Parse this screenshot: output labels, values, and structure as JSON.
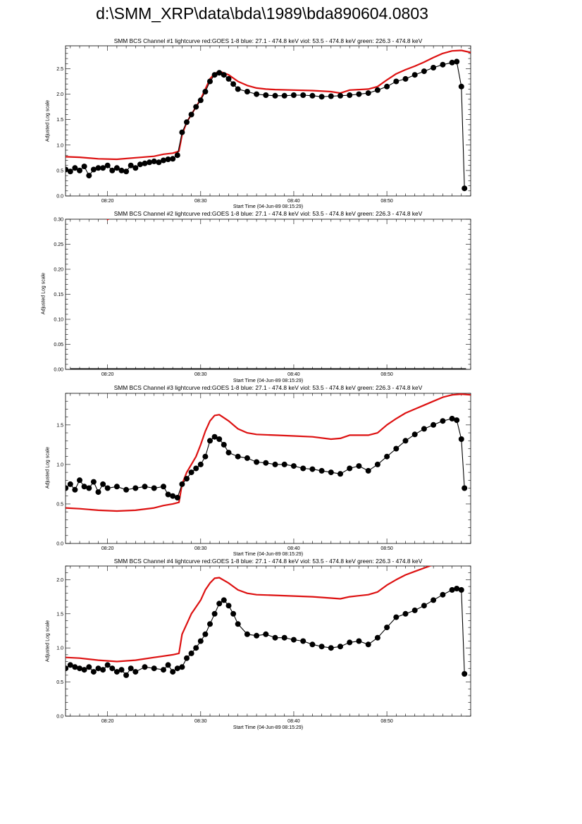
{
  "title": "d:\\SMM_XRP\\data\\bda\\1989\\bda890604.0803",
  "chart_data": [
    {
      "type": "line",
      "title": "SMM BCS Channel #1 lightcurve  red:GOES 1-8  blue: 27.1 - 474.8 keV  viol: 53.5 - 474.8 keV  green: 226.3 - 474.8 keV",
      "xlabel": "Start Time (04-Jun-89 08:15:29)",
      "ylabel": "Adjusted Log scale",
      "xlim": [
        "08:15:29",
        "08:59:00"
      ],
      "x_ticks": [
        "08:20",
        "08:30",
        "08:40",
        "08:50"
      ],
      "ylim": [
        0,
        2.95
      ],
      "y_ticks": [
        "0.0",
        "0.5",
        "1.0",
        "1.5",
        "2.0",
        "2.5"
      ],
      "y_tick_values": [
        0,
        0.5,
        1.0,
        1.5,
        2.0,
        2.5
      ],
      "series": [
        {
          "color": "#dd1111",
          "style": "line",
          "x": [
            "08:15:30",
            "08:17",
            "08:19",
            "08:21",
            "08:23",
            "08:25",
            "08:26",
            "08:27",
            "08:27:40",
            "08:28",
            "08:28:30",
            "08:29",
            "08:29:30",
            "08:30",
            "08:30:30",
            "08:31",
            "08:31:30",
            "08:32",
            "08:33",
            "08:34",
            "08:35",
            "08:36",
            "08:37",
            "08:38",
            "08:40",
            "08:42",
            "08:44",
            "08:45",
            "08:46",
            "08:48",
            "08:49",
            "08:50",
            "08:51",
            "08:52",
            "08:53",
            "08:54",
            "08:55",
            "08:56",
            "08:57",
            "08:58",
            "08:59"
          ],
          "y": [
            0.77,
            0.76,
            0.73,
            0.72,
            0.75,
            0.78,
            0.82,
            0.84,
            0.88,
            1.2,
            1.45,
            1.6,
            1.75,
            1.9,
            2.1,
            2.3,
            2.4,
            2.45,
            2.38,
            2.25,
            2.17,
            2.12,
            2.1,
            2.09,
            2.08,
            2.07,
            2.05,
            2.02,
            2.08,
            2.1,
            2.15,
            2.28,
            2.4,
            2.48,
            2.55,
            2.63,
            2.72,
            2.8,
            2.85,
            2.86,
            2.82
          ]
        },
        {
          "color": "#000000",
          "style": "dots",
          "x": [
            "08:15:30",
            "08:16",
            "08:16:30",
            "08:17",
            "08:17:30",
            "08:18",
            "08:18:30",
            "08:19",
            "08:19:30",
            "08:20",
            "08:20:30",
            "08:21",
            "08:21:30",
            "08:22",
            "08:22:30",
            "08:23",
            "08:23:30",
            "08:24",
            "08:24:30",
            "08:25",
            "08:25:30",
            "08:26",
            "08:26:30",
            "08:27",
            "08:27:30",
            "08:28",
            "08:28:30",
            "08:29",
            "08:29:30",
            "08:30",
            "08:30:30",
            "08:31",
            "08:31:30",
            "08:32",
            "08:32:30",
            "08:33",
            "08:33:30",
            "08:34",
            "08:35",
            "08:36",
            "08:37",
            "08:38",
            "08:39",
            "08:40",
            "08:41",
            "08:42",
            "08:43",
            "08:44",
            "08:45",
            "08:46",
            "08:47",
            "08:48",
            "08:49",
            "08:50",
            "08:51",
            "08:52",
            "08:53",
            "08:54",
            "08:55",
            "08:56",
            "08:57",
            "08:57:30",
            "08:58",
            "08:58:20"
          ],
          "y": [
            0.52,
            0.48,
            0.55,
            0.5,
            0.58,
            0.4,
            0.52,
            0.55,
            0.55,
            0.6,
            0.5,
            0.55,
            0.5,
            0.48,
            0.6,
            0.55,
            0.62,
            0.64,
            0.66,
            0.68,
            0.66,
            0.7,
            0.72,
            0.73,
            0.8,
            1.25,
            1.45,
            1.6,
            1.75,
            1.88,
            2.05,
            2.25,
            2.38,
            2.42,
            2.38,
            2.3,
            2.2,
            2.1,
            2.05,
            2.0,
            1.98,
            1.97,
            1.97,
            1.98,
            1.98,
            1.97,
            1.95,
            1.96,
            1.97,
            1.98,
            2.0,
            2.02,
            2.08,
            2.15,
            2.25,
            2.3,
            2.38,
            2.45,
            2.52,
            2.58,
            2.62,
            2.64,
            2.15,
            0.15
          ]
        }
      ]
    },
    {
      "type": "line",
      "title": "SMM BCS Channel #2 lightcurve  red:GOES 1-8  blue: 27.1 - 474.8 keV  viol: 53.5 - 474.8 keV  green: 226.3 - 474.8 keV",
      "xlabel": "Start Time (04-Jun-89 08:15:29)",
      "ylabel": "Adjusted Log scale",
      "xlim": [
        "08:15:29",
        "08:59:00"
      ],
      "x_ticks": [
        "08:20",
        "08:30",
        "08:40",
        "08:50"
      ],
      "ylim": [
        0,
        0.3
      ],
      "y_ticks": [
        "0.00",
        "0.05",
        "0.10",
        "0.15",
        "0.20",
        "0.25",
        "0.30"
      ],
      "y_tick_values": [
        0,
        0.05,
        0.1,
        0.15,
        0.2,
        0.25,
        0.3
      ],
      "series": [
        {
          "color": "#dd1111",
          "style": "line",
          "x": [
            "08:19:55",
            "08:20:10"
          ],
          "y": [
            0.299,
            0.301
          ]
        },
        {
          "color": "#000000",
          "style": "flat",
          "x": [
            "08:16",
            "08:58:30"
          ],
          "y": [
            0,
            0
          ]
        }
      ]
    },
    {
      "type": "line",
      "title": "SMM BCS Channel #3 lightcurve  red:GOES 1-8  blue: 27.1 - 474.8 keV  viol: 53.5 - 474.8 keV  green: 226.3 - 474.8 keV",
      "xlabel": "Start Time (04-Jun-89 08:15:29)",
      "ylabel": "Adjusted Log scale",
      "xlim": [
        "08:15:29",
        "08:59:00"
      ],
      "x_ticks": [
        "08:20",
        "08:30",
        "08:40",
        "08:50"
      ],
      "ylim": [
        0,
        1.9
      ],
      "y_ticks": [
        "0.0",
        "0.5",
        "1.0",
        "1.5"
      ],
      "y_tick_values": [
        0,
        0.5,
        1.0,
        1.5
      ],
      "series": [
        {
          "color": "#dd1111",
          "style": "line",
          "x": [
            "08:15:30",
            "08:17",
            "08:19",
            "08:21",
            "08:23",
            "08:25",
            "08:26",
            "08:27",
            "08:27:40",
            "08:28",
            "08:28:30",
            "08:29",
            "08:29:30",
            "08:30",
            "08:30:30",
            "08:31",
            "08:31:30",
            "08:32",
            "08:33",
            "08:34",
            "08:35",
            "08:36",
            "08:38",
            "08:40",
            "08:42",
            "08:44",
            "08:45",
            "08:46",
            "08:48",
            "08:49",
            "08:50",
            "08:51",
            "08:52",
            "08:53",
            "08:54",
            "08:55",
            "08:56",
            "08:57",
            "08:58",
            "08:59"
          ],
          "y": [
            0.45,
            0.44,
            0.42,
            0.41,
            0.42,
            0.45,
            0.48,
            0.5,
            0.52,
            0.75,
            0.9,
            1.0,
            1.1,
            1.25,
            1.42,
            1.55,
            1.62,
            1.63,
            1.55,
            1.45,
            1.4,
            1.38,
            1.37,
            1.36,
            1.35,
            1.32,
            1.33,
            1.37,
            1.37,
            1.4,
            1.5,
            1.58,
            1.65,
            1.7,
            1.75,
            1.8,
            1.85,
            1.88,
            1.89,
            1.88
          ]
        },
        {
          "color": "#000000",
          "style": "dots",
          "x": [
            "08:15:30",
            "08:16",
            "08:16:30",
            "08:17",
            "08:17:30",
            "08:18",
            "08:18:30",
            "08:19",
            "08:19:30",
            "08:20",
            "08:21",
            "08:22",
            "08:23",
            "08:24",
            "08:25",
            "08:26",
            "08:26:30",
            "08:27",
            "08:27:30",
            "08:28",
            "08:28:30",
            "08:29",
            "08:29:30",
            "08:30",
            "08:30:30",
            "08:31",
            "08:31:30",
            "08:32",
            "08:32:30",
            "08:33",
            "08:34",
            "08:35",
            "08:36",
            "08:37",
            "08:38",
            "08:39",
            "08:40",
            "08:41",
            "08:42",
            "08:43",
            "08:44",
            "08:45",
            "08:46",
            "08:47",
            "08:48",
            "08:49",
            "08:50",
            "08:51",
            "08:52",
            "08:53",
            "08:54",
            "08:55",
            "08:56",
            "08:57",
            "08:57:30",
            "08:58",
            "08:58:20"
          ],
          "y": [
            0.7,
            0.75,
            0.68,
            0.8,
            0.72,
            0.7,
            0.78,
            0.65,
            0.75,
            0.7,
            0.72,
            0.68,
            0.7,
            0.72,
            0.7,
            0.72,
            0.62,
            0.6,
            0.58,
            0.75,
            0.82,
            0.9,
            0.95,
            1.0,
            1.1,
            1.3,
            1.35,
            1.32,
            1.25,
            1.15,
            1.1,
            1.08,
            1.03,
            1.02,
            1.0,
            1.0,
            0.98,
            0.95,
            0.94,
            0.92,
            0.9,
            0.88,
            0.95,
            0.98,
            0.92,
            1.0,
            1.1,
            1.2,
            1.3,
            1.38,
            1.45,
            1.5,
            1.55,
            1.58,
            1.56,
            1.32,
            0.7
          ]
        }
      ]
    },
    {
      "type": "line",
      "title": "SMM BCS Channel #4 lightcurve  red:GOES 1-8  blue: 27.1 - 474.8 keV  viol: 53.5 - 474.8 keV  green: 226.3 - 474.8 keV",
      "xlabel": "Start Time (04-Jun-89 08:15:29)",
      "ylabel": "Adjusted Log scale",
      "xlim": [
        "08:15:29",
        "08:59:00"
      ],
      "x_ticks": [
        "08:20",
        "08:30",
        "08:40",
        "08:50"
      ],
      "ylim": [
        0,
        2.2
      ],
      "y_ticks": [
        "0.0",
        "0.5",
        "1.0",
        "1.5",
        "2.0"
      ],
      "y_tick_values": [
        0,
        0.5,
        1.0,
        1.5,
        2.0
      ],
      "series": [
        {
          "color": "#dd1111",
          "style": "line",
          "x": [
            "08:15:30",
            "08:17",
            "08:19",
            "08:21",
            "08:23",
            "08:25",
            "08:26",
            "08:27",
            "08:27:40",
            "08:28",
            "08:28:30",
            "08:29",
            "08:29:30",
            "08:30",
            "08:30:30",
            "08:31",
            "08:31:30",
            "08:32",
            "08:33",
            "08:34",
            "08:35",
            "08:36",
            "08:38",
            "08:40",
            "08:42",
            "08:44",
            "08:45",
            "08:46",
            "08:48",
            "08:49",
            "08:50",
            "08:51",
            "08:52",
            "08:53",
            "08:54",
            "08:55",
            "08:56",
            "08:57",
            "08:58",
            "08:59"
          ],
          "y": [
            0.86,
            0.85,
            0.82,
            0.8,
            0.82,
            0.86,
            0.88,
            0.9,
            0.92,
            1.2,
            1.35,
            1.5,
            1.6,
            1.7,
            1.85,
            1.95,
            2.02,
            2.03,
            1.95,
            1.85,
            1.8,
            1.78,
            1.77,
            1.76,
            1.75,
            1.73,
            1.72,
            1.75,
            1.78,
            1.82,
            1.92,
            2.0,
            2.07,
            2.12,
            2.17,
            2.22,
            2.28,
            2.33,
            2.36,
            2.38
          ]
        },
        {
          "color": "#000000",
          "style": "dots",
          "x": [
            "08:15:30",
            "08:16",
            "08:16:30",
            "08:17",
            "08:17:30",
            "08:18",
            "08:18:30",
            "08:19",
            "08:19:30",
            "08:20",
            "08:20:30",
            "08:21",
            "08:21:30",
            "08:22",
            "08:22:30",
            "08:23",
            "08:24",
            "08:25",
            "08:26",
            "08:26:30",
            "08:27",
            "08:27:30",
            "08:28",
            "08:28:30",
            "08:29",
            "08:29:30",
            "08:30",
            "08:30:30",
            "08:31",
            "08:31:30",
            "08:32",
            "08:32:30",
            "08:33",
            "08:33:30",
            "08:34",
            "08:35",
            "08:36",
            "08:37",
            "08:38",
            "08:39",
            "08:40",
            "08:41",
            "08:42",
            "08:43",
            "08:44",
            "08:45",
            "08:46",
            "08:47",
            "08:48",
            "08:49",
            "08:50",
            "08:51",
            "08:52",
            "08:53",
            "08:54",
            "08:55",
            "08:56",
            "08:57",
            "08:57:30",
            "08:58",
            "08:58:20"
          ],
          "y": [
            0.7,
            0.75,
            0.72,
            0.7,
            0.68,
            0.72,
            0.65,
            0.7,
            0.68,
            0.75,
            0.7,
            0.65,
            0.68,
            0.6,
            0.7,
            0.65,
            0.72,
            0.7,
            0.68,
            0.75,
            0.65,
            0.7,
            0.72,
            0.85,
            0.92,
            1.0,
            1.1,
            1.2,
            1.35,
            1.5,
            1.65,
            1.7,
            1.62,
            1.5,
            1.35,
            1.2,
            1.18,
            1.2,
            1.15,
            1.15,
            1.12,
            1.1,
            1.05,
            1.02,
            1.0,
            1.02,
            1.08,
            1.1,
            1.05,
            1.15,
            1.3,
            1.45,
            1.5,
            1.55,
            1.62,
            1.7,
            1.78,
            1.85,
            1.87,
            1.85,
            0.62
          ]
        }
      ]
    }
  ]
}
